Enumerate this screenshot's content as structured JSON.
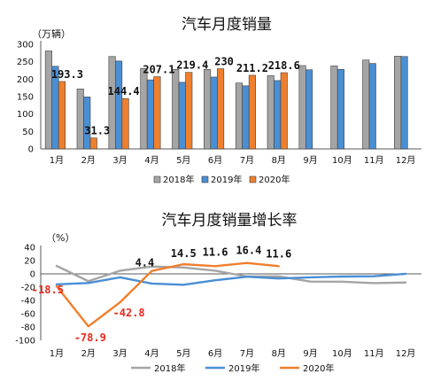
{
  "chart_data": [
    {
      "type": "bar",
      "title": "汽车月度销量",
      "unit": "（万辆）",
      "categories": [
        "1月",
        "2月",
        "3月",
        "4月",
        "5月",
        "6月",
        "7月",
        "8月",
        "9月",
        "10月",
        "11月",
        "12月"
      ],
      "ylim": [
        0,
        300
      ],
      "yticks": [
        0,
        50,
        100,
        150,
        200,
        250,
        300
      ],
      "legend_position": "bottom",
      "grid": false,
      "series": [
        {
          "name": "2018年",
          "color": "#a5a5a5",
          "values": [
            281,
            172,
            265,
            231,
            228,
            228,
            189,
            210,
            239,
            238,
            255,
            266
          ]
        },
        {
          "name": "2019年",
          "color": "#4a8fd4",
          "values": [
            237,
            149,
            252,
            198,
            191,
            206,
            181,
            196,
            227,
            228,
            245,
            265
          ]
        },
        {
          "name": "2020年",
          "color": "#f07f2d",
          "values": [
            193.3,
            31.3,
            144.4,
            207.1,
            219.4,
            230,
            211.2,
            218.6,
            null,
            null,
            null,
            null
          ]
        }
      ],
      "data_labels": [
        {
          "category": "1月",
          "text": "193.3"
        },
        {
          "category": "2月",
          "text": "31.3"
        },
        {
          "category": "3月",
          "text": "144.4"
        },
        {
          "category": "4月",
          "text": "207.1"
        },
        {
          "category": "5月",
          "text": "219.4"
        },
        {
          "category": "6月",
          "text": "230"
        },
        {
          "category": "7月",
          "text": "211.2"
        },
        {
          "category": "8月",
          "text": "218.6"
        }
      ]
    },
    {
      "type": "line",
      "title": "汽车月度销量增长率",
      "unit": "（%）",
      "categories": [
        "1月",
        "2月",
        "3月",
        "4月",
        "5月",
        "6月",
        "7月",
        "8月",
        "9月",
        "10月",
        "11月",
        "12月"
      ],
      "ylim": [
        -100,
        40
      ],
      "yticks": [
        -100,
        -80,
        -60,
        -40,
        -20,
        0,
        20,
        40
      ],
      "legend_position": "bottom",
      "grid": false,
      "series": [
        {
          "name": "2018年",
          "color": "#a5a5a5",
          "values": [
            12,
            -11,
            4.7,
            11,
            9.6,
            4.8,
            -4,
            -3.8,
            -11.6,
            -11.7,
            -13.9,
            -13
          ]
        },
        {
          "name": "2019年",
          "color": "#4a8fd4",
          "values": [
            -15.8,
            -13.8,
            -5.2,
            -14.6,
            -16.4,
            -9.6,
            -4.3,
            -6.9,
            -5.2,
            -4,
            -3.6,
            0.1
          ]
        },
        {
          "name": "2020年",
          "color": "#f07f2d",
          "values": [
            -18.5,
            -78.9,
            -42.8,
            4.4,
            14.5,
            11.6,
            16.4,
            11.6,
            null,
            null,
            null,
            null
          ]
        }
      ],
      "data_labels": [
        {
          "category": "1月",
          "text": "-18.5",
          "color": "red"
        },
        {
          "category": "2月",
          "text": "-78.9",
          "color": "red"
        },
        {
          "category": "3月",
          "text": "-42.8",
          "color": "red"
        },
        {
          "category": "4月",
          "text": "4.4",
          "color": "black"
        },
        {
          "category": "5月",
          "text": "14.5",
          "color": "black"
        },
        {
          "category": "6月",
          "text": "11.6",
          "color": "black"
        },
        {
          "category": "7月",
          "text": "16.4",
          "color": "black"
        },
        {
          "category": "8月",
          "text": "11.6",
          "color": "black"
        }
      ]
    }
  ]
}
